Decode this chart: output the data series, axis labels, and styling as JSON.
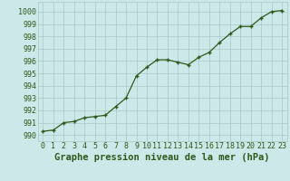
{
  "x": [
    0,
    1,
    2,
    3,
    4,
    5,
    6,
    7,
    8,
    9,
    10,
    11,
    12,
    13,
    14,
    15,
    16,
    17,
    18,
    19,
    20,
    21,
    22,
    23
  ],
  "y": [
    990.3,
    990.4,
    991.0,
    991.1,
    991.4,
    991.5,
    991.6,
    992.3,
    993.0,
    994.8,
    995.5,
    996.1,
    996.1,
    995.9,
    995.7,
    996.3,
    996.7,
    997.5,
    998.2,
    998.8,
    998.8,
    999.5,
    1000.0,
    1000.1
  ],
  "line_color": "#2d5a1b",
  "marker": "+",
  "marker_color": "#2d5a1b",
  "bg_color": "#cce8e8",
  "grid_color": "#aac8c8",
  "xlabel": "Graphe pression niveau de la mer (hPa)",
  "xlabel_fontsize": 7.5,
  "xlabel_color": "#2d5a1b",
  "ymin": 989.5,
  "ymax": 1000.8,
  "xmin": -0.5,
  "xmax": 23.5,
  "tick_fontsize": 6.0,
  "tick_color": "#2d5a1b"
}
